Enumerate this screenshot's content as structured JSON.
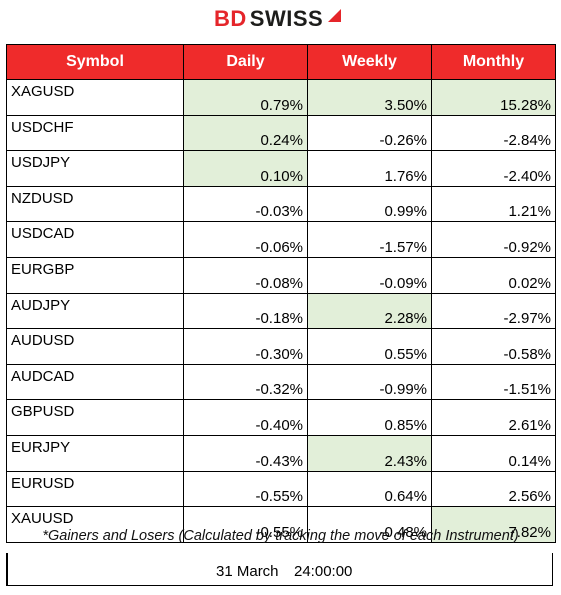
{
  "logo": {
    "part1": "BD",
    "part2": "SWISS"
  },
  "headers": [
    "Symbol",
    "Daily",
    "Weekly",
    "Monthly"
  ],
  "rows": [
    {
      "symbol": "XAGUSD",
      "daily": "0.79%",
      "weekly": "3.50%",
      "monthly": "15.28%",
      "hl": [
        true,
        true,
        true
      ]
    },
    {
      "symbol": "USDCHF",
      "daily": "0.24%",
      "weekly": "-0.26%",
      "monthly": "-2.84%",
      "hl": [
        true,
        false,
        false
      ]
    },
    {
      "symbol": "USDJPY",
      "daily": "0.10%",
      "weekly": "1.76%",
      "monthly": "-2.40%",
      "hl": [
        true,
        false,
        false
      ]
    },
    {
      "symbol": "NZDUSD",
      "daily": "-0.03%",
      "weekly": "0.99%",
      "monthly": "1.21%",
      "hl": [
        false,
        false,
        false
      ]
    },
    {
      "symbol": "USDCAD",
      "daily": "-0.06%",
      "weekly": "-1.57%",
      "monthly": "-0.92%",
      "hl": [
        false,
        false,
        false
      ]
    },
    {
      "symbol": "EURGBP",
      "daily": "-0.08%",
      "weekly": "-0.09%",
      "monthly": "0.02%",
      "hl": [
        false,
        false,
        false
      ]
    },
    {
      "symbol": "AUDJPY",
      "daily": "-0.18%",
      "weekly": "2.28%",
      "monthly": "-2.97%",
      "hl": [
        false,
        true,
        false
      ]
    },
    {
      "symbol": "AUDUSD",
      "daily": "-0.30%",
      "weekly": "0.55%",
      "monthly": "-0.58%",
      "hl": [
        false,
        false,
        false
      ]
    },
    {
      "symbol": "AUDCAD",
      "daily": "-0.32%",
      "weekly": "-0.99%",
      "monthly": "-1.51%",
      "hl": [
        false,
        false,
        false
      ]
    },
    {
      "symbol": "GBPUSD",
      "daily": "-0.40%",
      "weekly": "0.85%",
      "monthly": "2.61%",
      "hl": [
        false,
        false,
        false
      ]
    },
    {
      "symbol": "EURJPY",
      "daily": "-0.43%",
      "weekly": "2.43%",
      "monthly": "0.14%",
      "hl": [
        false,
        true,
        false
      ]
    },
    {
      "symbol": "EURUSD",
      "daily": "-0.55%",
      "weekly": "0.64%",
      "monthly": "2.56%",
      "hl": [
        false,
        false,
        false
      ]
    },
    {
      "symbol": "XAUUSD",
      "daily": "-0.55%",
      "weekly": "-0.48%",
      "monthly": "7.82%",
      "hl": [
        false,
        false,
        true
      ]
    }
  ],
  "footnote": "*Gainers and Losers (Calculated by tracking the move of each Instrument)",
  "date": "31 March",
  "time": "24:00:00",
  "colors": {
    "header_bg": "#ef2b2b",
    "positive_bg": "#e2efd9",
    "brand_red": "#e5252a"
  }
}
